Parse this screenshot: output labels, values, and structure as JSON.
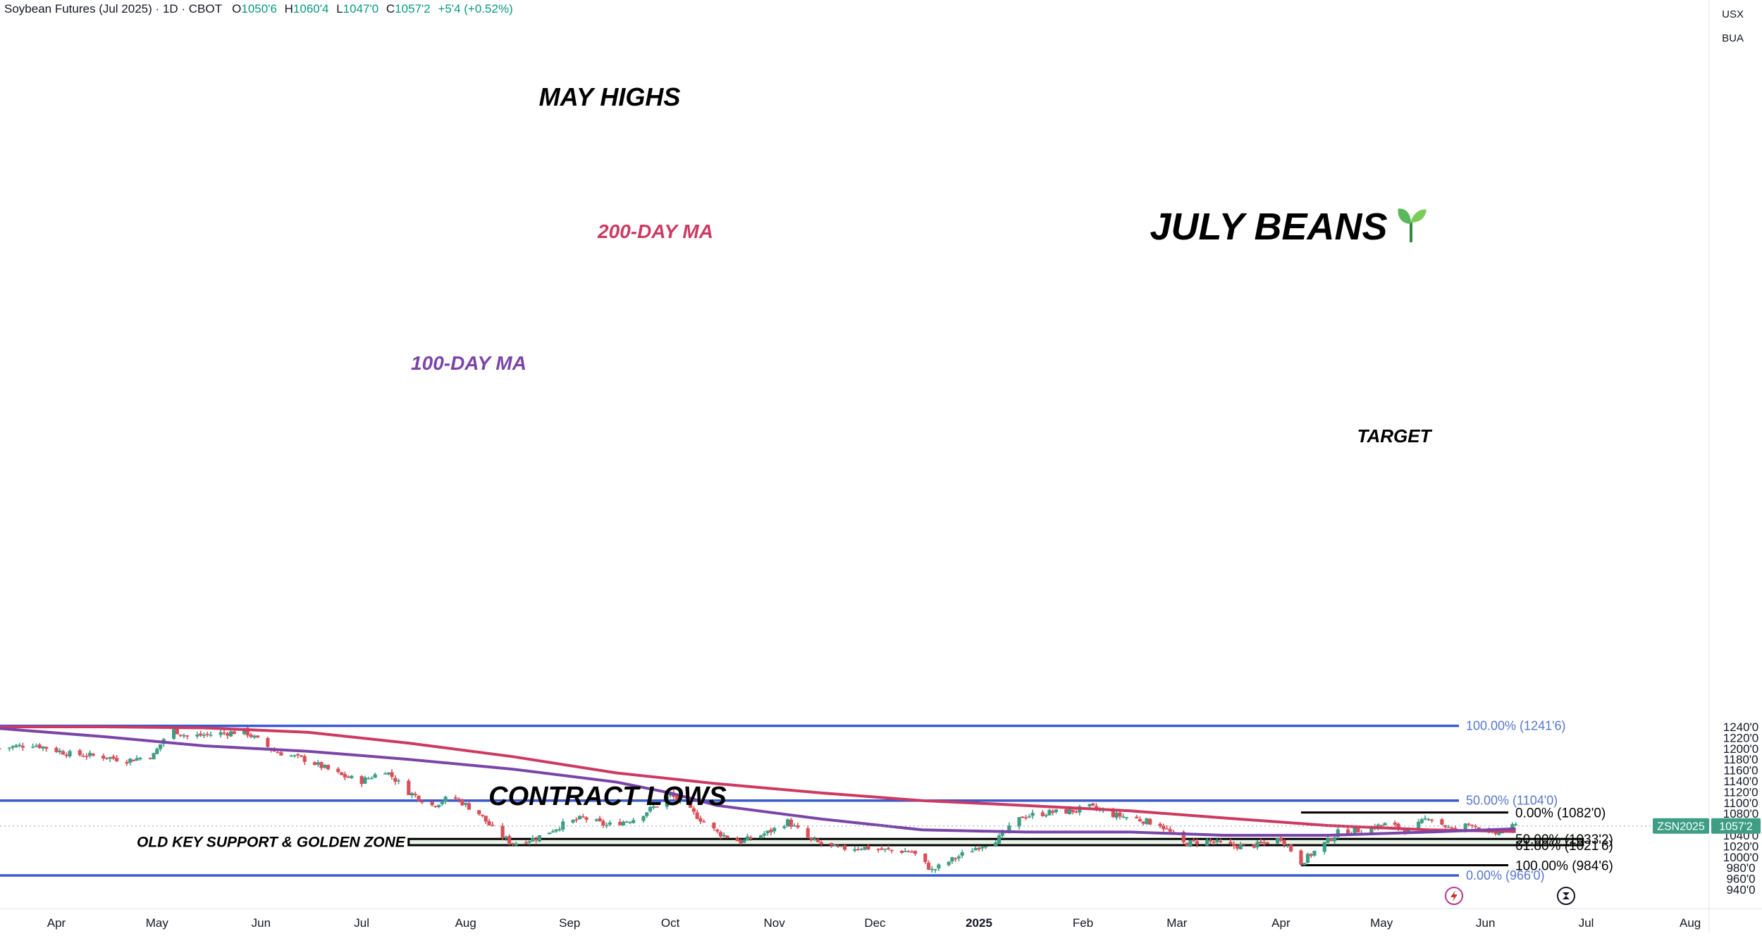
{
  "header": {
    "symbol_text": "Soybean Futures (Jul 2025) · 1D · CBOT",
    "open_label": "O",
    "open_value": "1050'6",
    "high_label": "H",
    "high_value": "1060'4",
    "low_label": "L",
    "low_value": "1047'0",
    "close_label": "C",
    "close_value": "1057'2",
    "change": "+5'4 (+0.52%)"
  },
  "top_right": {
    "currency": "USX",
    "unit": "BUA"
  },
  "price_tag": {
    "symbol": "ZSN2025",
    "price": "1057'2"
  },
  "icons": {
    "flash": "lightning-icon",
    "replay": "replay-icon"
  },
  "colors": {
    "up": "#3d9e85",
    "down": "#d9505a",
    "ma100": "#7a45a8",
    "ma200": "#cc3a62",
    "fib_blue": "#3a5ad0",
    "zone_fill": "#e8f4e8",
    "text_blue": "#5577cc"
  },
  "chart_data": {
    "type": "candlestick",
    "title": "JULY BEANS",
    "title_icon": "seedling-icon",
    "y_axis": {
      "range": [
        935,
        1265
      ],
      "ticks": [
        "1240'0",
        "1220'0",
        "1200'0",
        "1180'0",
        "1160'0",
        "1140'0",
        "1120'0",
        "1100'0",
        "1080'0",
        "1060'0",
        "1040'0",
        "1020'0",
        "1000'0",
        "980'0",
        "960'0",
        "940'0"
      ]
    },
    "x_axis": {
      "labels": [
        {
          "label": "Apr",
          "date": "2024-04-01"
        },
        {
          "label": "May",
          "date": "2024-05-01"
        },
        {
          "label": "Jun",
          "date": "2024-06-01"
        },
        {
          "label": "Jul",
          "date": "2024-07-01"
        },
        {
          "label": "Aug",
          "date": "2024-08-01"
        },
        {
          "label": "Sep",
          "date": "2024-09-01"
        },
        {
          "label": "Oct",
          "date": "2024-10-01"
        },
        {
          "label": "Nov",
          "date": "2024-11-01"
        },
        {
          "label": "Dec",
          "date": "2024-12-01"
        },
        {
          "label": "2025",
          "date": "2025-01-01",
          "bold": true
        },
        {
          "label": "Feb",
          "date": "2025-02-01"
        },
        {
          "label": "Mar",
          "date": "2025-03-01"
        },
        {
          "label": "Apr",
          "date": "2025-04-01"
        },
        {
          "label": "May",
          "date": "2025-05-01"
        },
        {
          "label": "Jun",
          "date": "2025-06-01"
        },
        {
          "label": "Jul",
          "date": "2025-07-01"
        },
        {
          "label": "Aug",
          "date": "2025-08-01"
        }
      ]
    },
    "price_path": [
      [
        "2024-03-15",
        1200
      ],
      [
        "2024-03-25",
        1208
      ],
      [
        "2024-04-05",
        1190
      ],
      [
        "2024-04-15",
        1185
      ],
      [
        "2024-04-22",
        1178
      ],
      [
        "2024-04-30",
        1188
      ],
      [
        "2024-05-05",
        1238
      ],
      [
        "2024-05-10",
        1222
      ],
      [
        "2024-05-20",
        1228
      ],
      [
        "2024-05-27",
        1232
      ],
      [
        "2024-06-05",
        1195
      ],
      [
        "2024-06-15",
        1178
      ],
      [
        "2024-06-25",
        1150
      ],
      [
        "2024-07-01",
        1140
      ],
      [
        "2024-07-08",
        1160
      ],
      [
        "2024-07-15",
        1120
      ],
      [
        "2024-07-22",
        1095
      ],
      [
        "2024-07-28",
        1112
      ],
      [
        "2024-08-05",
        1080
      ],
      [
        "2024-08-10",
        1045
      ],
      [
        "2024-08-15",
        1025
      ],
      [
        "2024-08-22",
        1035
      ],
      [
        "2024-08-30",
        1060
      ],
      [
        "2024-09-05",
        1072
      ],
      [
        "2024-09-12",
        1058
      ],
      [
        "2024-09-20",
        1070
      ],
      [
        "2024-09-27",
        1095
      ],
      [
        "2024-10-01",
        1115
      ],
      [
        "2024-10-08",
        1080
      ],
      [
        "2024-10-15",
        1045
      ],
      [
        "2024-10-22",
        1028
      ],
      [
        "2024-10-30",
        1045
      ],
      [
        "2024-11-05",
        1065
      ],
      [
        "2024-11-12",
        1030
      ],
      [
        "2024-11-20",
        1015
      ],
      [
        "2024-11-27",
        1018
      ],
      [
        "2024-12-05",
        1012
      ],
      [
        "2024-12-12",
        1010
      ],
      [
        "2024-12-18",
        975
      ],
      [
        "2024-12-24",
        995
      ],
      [
        "2025-01-01",
        1020
      ],
      [
        "2025-01-07",
        1035
      ],
      [
        "2025-01-14",
        1075
      ],
      [
        "2025-01-22",
        1082
      ],
      [
        "2025-01-29",
        1085
      ],
      [
        "2025-02-03",
        1092
      ],
      [
        "2025-02-10",
        1078
      ],
      [
        "2025-02-17",
        1070
      ],
      [
        "2025-02-24",
        1060
      ],
      [
        "2025-03-03",
        1025
      ],
      [
        "2025-03-10",
        1030
      ],
      [
        "2025-03-17",
        1020
      ],
      [
        "2025-03-25",
        1022
      ],
      [
        "2025-04-01",
        1035
      ],
      [
        "2025-04-07",
        990
      ],
      [
        "2025-04-12",
        1015
      ],
      [
        "2025-04-18",
        1045
      ],
      [
        "2025-04-25",
        1050
      ],
      [
        "2025-05-02",
        1060
      ],
      [
        "2025-05-10",
        1048
      ],
      [
        "2025-05-15",
        1075
      ],
      [
        "2025-05-22",
        1050
      ],
      [
        "2025-05-28",
        1062
      ],
      [
        "2025-06-02",
        1040
      ],
      [
        "2025-06-05",
        1045
      ],
      [
        "2025-06-10",
        1057.25
      ]
    ],
    "ma200": [
      [
        "2024-03-15",
        1240
      ],
      [
        "2024-04-15",
        1240
      ],
      [
        "2024-05-15",
        1238
      ],
      [
        "2024-06-15",
        1230
      ],
      [
        "2024-07-15",
        1210
      ],
      [
        "2024-08-15",
        1185
      ],
      [
        "2024-09-15",
        1155
      ],
      [
        "2024-10-15",
        1135
      ],
      [
        "2024-11-15",
        1118
      ],
      [
        "2024-12-15",
        1104
      ],
      [
        "2025-01-15",
        1095
      ],
      [
        "2025-02-15",
        1085
      ],
      [
        "2025-03-15",
        1072
      ],
      [
        "2025-04-15",
        1058
      ],
      [
        "2025-05-15",
        1050
      ],
      [
        "2025-06-10",
        1047
      ]
    ],
    "ma100": [
      [
        "2024-03-15",
        1237
      ],
      [
        "2024-04-15",
        1222
      ],
      [
        "2024-05-15",
        1205
      ],
      [
        "2024-06-15",
        1195
      ],
      [
        "2024-07-15",
        1180
      ],
      [
        "2024-08-15",
        1162
      ],
      [
        "2024-09-15",
        1138
      ],
      [
        "2024-10-01",
        1118
      ],
      [
        "2024-10-15",
        1095
      ],
      [
        "2024-11-15",
        1070
      ],
      [
        "2024-12-15",
        1050
      ],
      [
        "2025-01-15",
        1046
      ],
      [
        "2025-02-15",
        1046
      ],
      [
        "2025-03-15",
        1040
      ],
      [
        "2025-04-15",
        1040
      ],
      [
        "2025-05-15",
        1046
      ],
      [
        "2025-06-10",
        1052
      ]
    ],
    "ma_labels": {
      "ma200": "200-DAY MA",
      "ma100": "100-DAY MA"
    },
    "fib_blue": [
      {
        "level": "100.00%",
        "price": 1241.75,
        "price_text": "1241'6"
      },
      {
        "level": "50.00%",
        "price": 1104,
        "price_text": "1104'0"
      },
      {
        "level": "0.00%",
        "price": 966,
        "price_text": "966'0"
      }
    ],
    "fib_black": [
      {
        "level": "0.00%",
        "price": 1082,
        "price_text": "1082'0"
      },
      {
        "level": "50.00%",
        "price": 1033.25,
        "price_text": "1033'2"
      },
      {
        "level": "61.80%",
        "price": 1021.75,
        "price_text": "1021'6"
      },
      {
        "level": "100.00%",
        "price": 984.75,
        "price_text": "984'6"
      }
    ],
    "zone": {
      "from": "2024-07-15",
      "to": "2025-06-30",
      "top": 1033.25,
      "bottom": 1021.75,
      "label": "OLD KEY SUPPORT & GOLDEN ZONE"
    },
    "annotations": {
      "may_highs": "MAY HIGHS",
      "target": "TARGET",
      "contract_lows": "CONTRACT LOWS"
    },
    "last_price": 1057.25
  }
}
